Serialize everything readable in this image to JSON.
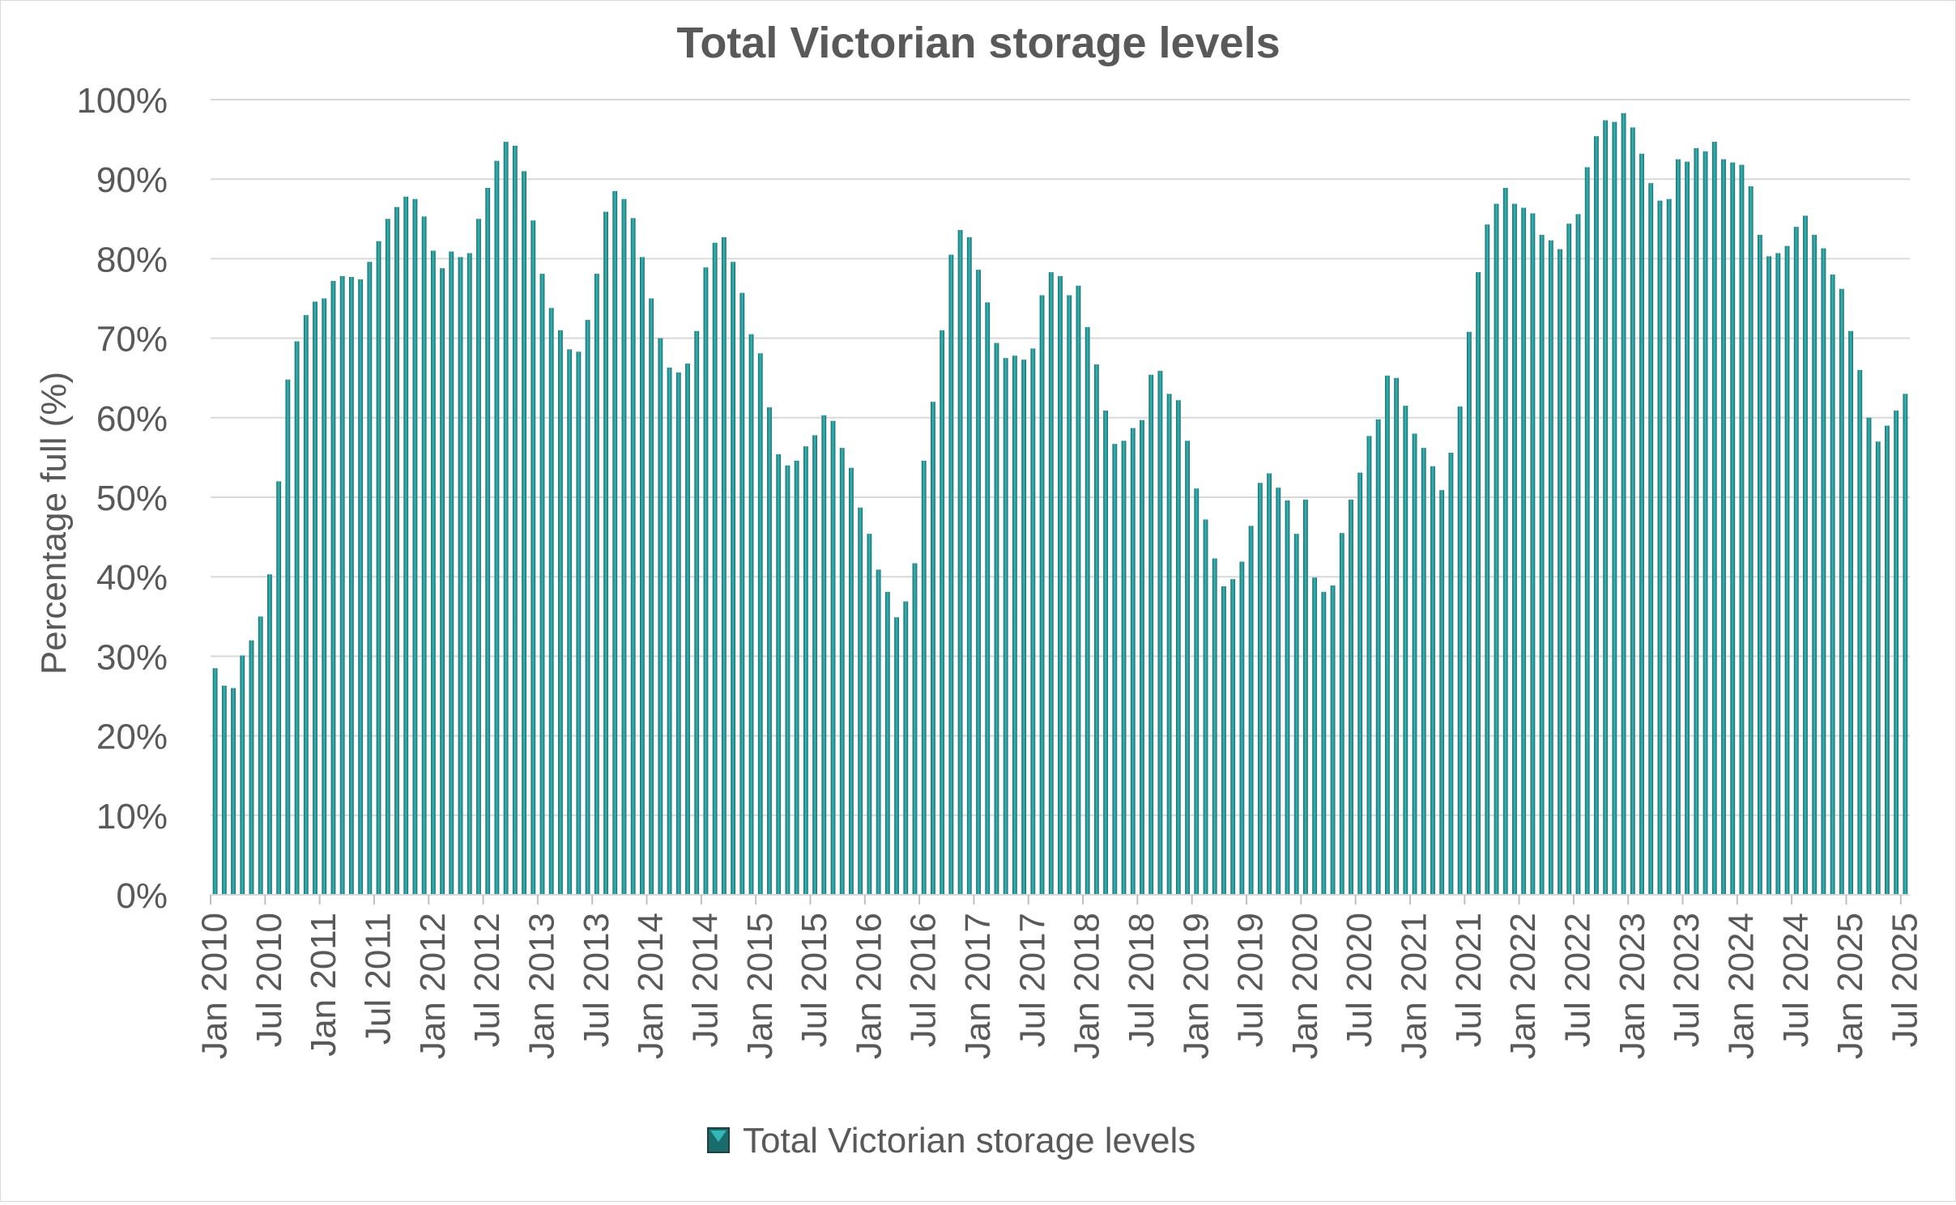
{
  "chart_data": {
    "type": "bar",
    "title": "Total Victorian storage levels",
    "ylabel": "Percentage full (%)",
    "xlabel": "",
    "ylim": [
      0,
      100
    ],
    "y_ticks": [
      "0%",
      "10%",
      "20%",
      "30%",
      "40%",
      "50%",
      "60%",
      "70%",
      "80%",
      "90%",
      "100%"
    ],
    "grid": true,
    "legend_position": "bottom",
    "bar_color": "#1a6b6b",
    "bar_highlight": "#35b8b8",
    "start_month": "Jan 2010",
    "x_tick_labels": [
      "Jan 2010",
      "Jul 2010",
      "Jan 2011",
      "Jul 2011",
      "Jan 2012",
      "Jul 2012",
      "Jan 2013",
      "Jul 2013",
      "Jan 2014",
      "Jul 2014",
      "Jan 2015",
      "Jul 2015",
      "Jan 2016",
      "Jul 2016",
      "Jan 2017",
      "Jul 2017",
      "Jan 2018",
      "Jul 2018",
      "Jan 2019",
      "Jul 2019",
      "Jan 2020",
      "Jul 2020",
      "Jan 2021",
      "Jul 2021",
      "Jan 2022",
      "Jul 2022",
      "Jan 2023",
      "Jul 2023",
      "Jan 2024",
      "Jul 2024",
      "Jan 2025",
      "Jul 2025"
    ],
    "series": [
      {
        "name": "Total Victorian storage levels",
        "values": [
          28.5,
          26.3,
          26.0,
          30.1,
          32.0,
          35.0,
          40.3,
          52.0,
          64.8,
          69.6,
          72.9,
          74.6,
          75.0,
          77.2,
          77.8,
          77.7,
          77.4,
          79.6,
          82.2,
          85.0,
          86.5,
          87.8,
          87.5,
          85.3,
          81.0,
          78.8,
          80.9,
          80.2,
          80.7,
          85.0,
          88.9,
          92.3,
          94.7,
          94.2,
          91.0,
          84.8,
          78.1,
          73.8,
          71.0,
          68.6,
          68.3,
          72.3,
          78.1,
          85.9,
          88.5,
          87.5,
          85.1,
          80.2,
          75.0,
          70.0,
          66.3,
          65.7,
          66.8,
          70.9,
          78.9,
          82.0,
          82.7,
          79.6,
          75.7,
          70.5,
          68.1,
          61.3,
          55.4,
          54.0,
          54.6,
          56.4,
          57.8,
          60.3,
          59.6,
          56.2,
          53.7,
          48.7,
          45.4,
          40.9,
          38.1,
          34.9,
          36.9,
          41.7,
          54.6,
          62.0,
          71.0,
          80.5,
          83.6,
          82.7,
          78.6,
          74.5,
          69.4,
          67.5,
          67.8,
          67.3,
          68.7,
          75.4,
          78.3,
          77.8,
          75.4,
          76.6,
          71.4,
          66.7,
          60.9,
          56.7,
          57.1,
          58.7,
          59.7,
          65.4,
          65.9,
          63.0,
          62.2,
          57.1,
          51.1,
          47.2,
          42.3,
          38.8,
          39.7,
          41.9,
          46.4,
          51.8,
          53.0,
          51.2,
          49.6,
          45.4,
          49.7,
          39.9,
          38.1,
          38.9,
          45.5,
          49.7,
          53.1,
          57.7,
          59.8,
          65.3,
          65.0,
          61.5,
          58.0,
          56.2,
          53.9,
          50.9,
          55.6,
          61.4,
          70.8,
          78.3,
          84.3,
          86.9,
          88.9,
          86.9,
          86.4,
          85.7,
          83.0,
          82.3,
          81.2,
          84.4,
          85.6,
          91.5,
          95.4,
          97.4,
          97.2,
          98.3,
          96.5,
          93.2,
          89.5,
          87.3,
          87.5,
          92.5,
          92.2,
          93.9,
          93.5,
          94.7,
          92.5,
          92.1,
          91.8,
          89.1,
          83.0,
          80.3,
          80.7,
          81.6,
          84.0,
          85.4,
          83.0,
          81.3,
          78.0,
          76.2,
          70.9,
          66.0,
          60.0,
          57.0,
          59.0,
          60.9,
          63.0
        ]
      }
    ]
  }
}
